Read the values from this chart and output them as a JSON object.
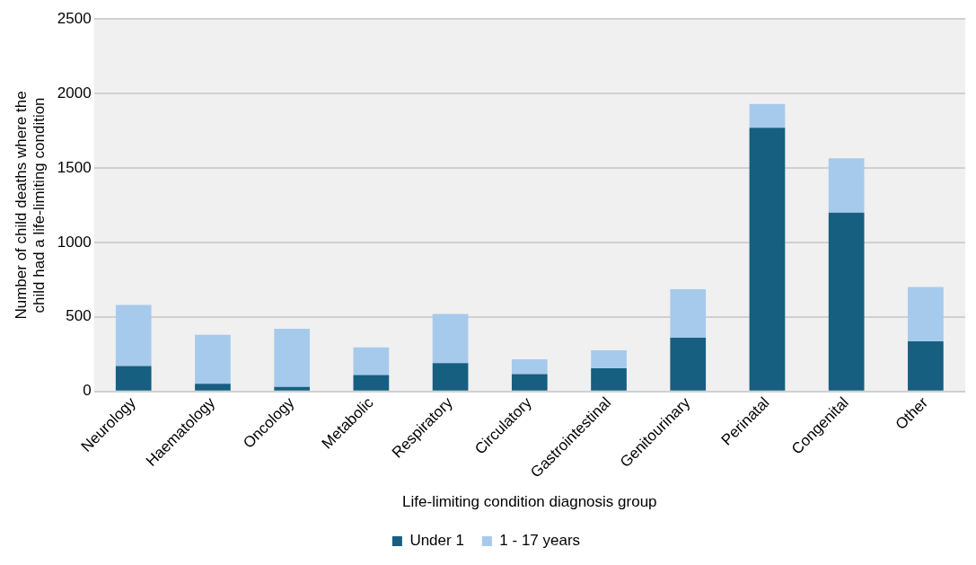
{
  "chart_data": {
    "type": "bar",
    "stacked": true,
    "xlabel": "Life-limiting condition diagnosis group",
    "ylabel": "Number of child deaths where the child had a life-limiting condition",
    "categories": [
      "Neurology",
      "Haematology",
      "Oncology",
      "Metabolic",
      "Respiratory",
      "Circulatory",
      "Gastrointestinal",
      "Genitourinary",
      "Perinatal",
      "Congenital",
      "Other"
    ],
    "series": [
      {
        "name": "Under 1",
        "color": "#165f81",
        "values": [
          170,
          50,
          30,
          110,
          190,
          115,
          155,
          360,
          1770,
          1200,
          335
        ]
      },
      {
        "name": "1 - 17 years",
        "color": "#a6caec",
        "values": [
          410,
          330,
          390,
          185,
          330,
          100,
          120,
          325,
          160,
          365,
          365
        ]
      }
    ],
    "ylim": [
      0,
      2500
    ],
    "yticks": [
      0,
      500,
      1000,
      1500,
      2000,
      2500
    ],
    "grid": "y",
    "legend": "bottom"
  }
}
